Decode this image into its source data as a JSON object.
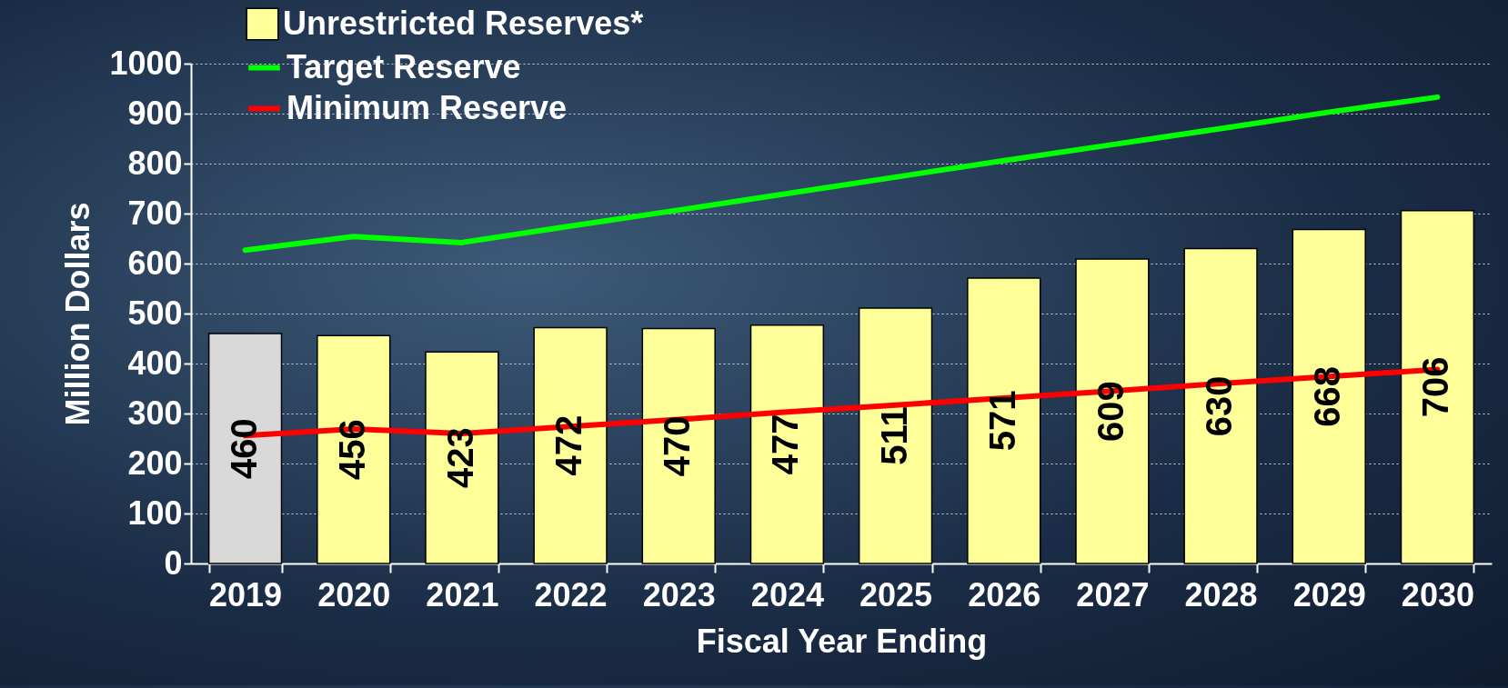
{
  "chart_data": {
    "type": "bar",
    "xlabel": "Fiscal Year Ending",
    "ylabel": "Million Dollars",
    "categories": [
      "2019",
      "2020",
      "2021",
      "2022",
      "2023",
      "2024",
      "2025",
      "2026",
      "2027",
      "2028",
      "2029",
      "2030"
    ],
    "series": [
      {
        "name": "Unrestricted Reserves*",
        "color": "#ffff99",
        "colors": [
          "#d9d9d9",
          "#ffff99",
          "#ffff99",
          "#ffff99",
          "#ffff99",
          "#ffff99",
          "#ffff99",
          "#ffff99",
          "#ffff99",
          "#ffff99",
          "#ffff99",
          "#ffff99"
        ],
        "values": [
          460,
          456,
          423,
          472,
          470,
          477,
          511,
          571,
          609,
          630,
          668,
          706
        ],
        "value_labels": [
          "460",
          "456",
          "423",
          "472",
          "470",
          "477",
          "511",
          "571",
          "609",
          "630",
          "668",
          "706"
        ]
      },
      {
        "name": "Target Reserve",
        "type": "line",
        "color": "#00ff00",
        "values": [
          627,
          654,
          642,
          675,
          707,
          740,
          773,
          806,
          838,
          870,
          903,
          933
        ]
      },
      {
        "name": "Minimum Reserve",
        "type": "line",
        "color": "#ff0000",
        "values": [
          256,
          269,
          260,
          274,
          288,
          303,
          317,
          331,
          345,
          360,
          374,
          388
        ]
      }
    ],
    "ylim": [
      0,
      1000
    ],
    "yticks": [
      0,
      100,
      200,
      300,
      400,
      500,
      600,
      700,
      800,
      900,
      1000
    ],
    "grid": "y",
    "legend": "top left"
  }
}
